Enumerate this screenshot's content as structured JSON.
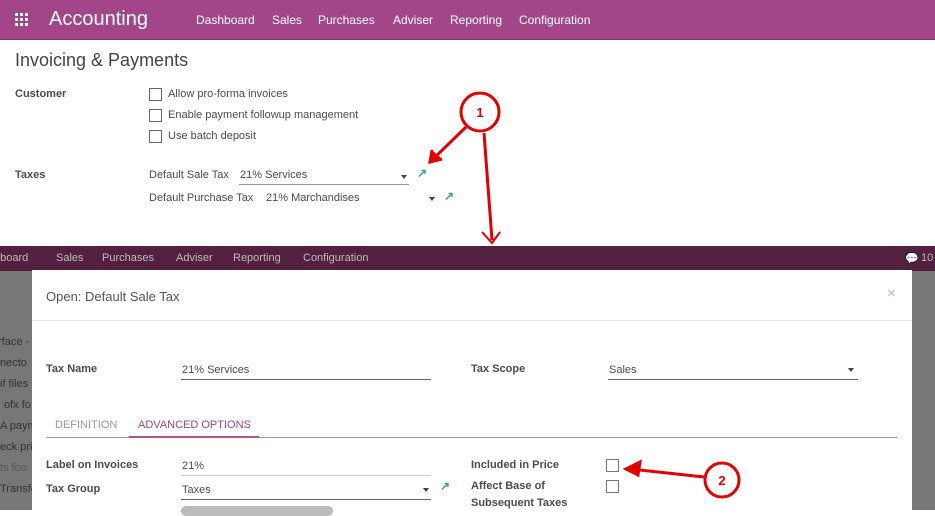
{
  "app": {
    "title": "Accounting",
    "menu": [
      "Dashboard",
      "Sales",
      "Purchases",
      "Adviser",
      "Reporting",
      "Configuration"
    ]
  },
  "page": {
    "title": "Invoicing & Payments",
    "customer": {
      "label": "Customer",
      "options": [
        "Allow pro-forma invoices",
        "Enable payment followup management",
        "Use batch deposit"
      ]
    },
    "taxes": {
      "label": "Taxes",
      "sale_label": "Default Sale Tax",
      "sale_value": "21% Services",
      "purchase_label": "Default Purchase Tax",
      "purchase_value": "21% Marchandises"
    }
  },
  "background": {
    "menu": [
      "hboard",
      "Sales",
      "Purchases",
      "Adviser",
      "Reporting",
      "Configuration"
    ],
    "messages": "10",
    "side": [
      "rface -",
      "necto",
      "if files",
      "ofx fo",
      "A paym",
      "eck pri",
      "ts foo",
      "Transfe"
    ]
  },
  "modal": {
    "title": "Open: Default Sale Tax",
    "close": "×",
    "tax_name_label": "Tax Name",
    "tax_name": "21% Services",
    "tax_scope_label": "Tax Scope",
    "tax_scope": "Sales",
    "tabs": [
      "DEFINITION",
      "ADVANCED OPTIONS"
    ],
    "active_tab": "ADVANCED OPTIONS",
    "label_invoices_label": "Label on Invoices",
    "label_invoices": "21%",
    "tax_group_label": "Tax Group",
    "tax_group": "Taxes",
    "included_label": "Included in Price",
    "included": false,
    "affect_label_1": "Affect Base of",
    "affect_label_2": "Subsequent Taxes",
    "affect": false
  },
  "annotations": [
    "1",
    "2"
  ],
  "colors": {
    "brand": "#a24689",
    "accent": "#2fa988",
    "annotation": "#e00000"
  }
}
